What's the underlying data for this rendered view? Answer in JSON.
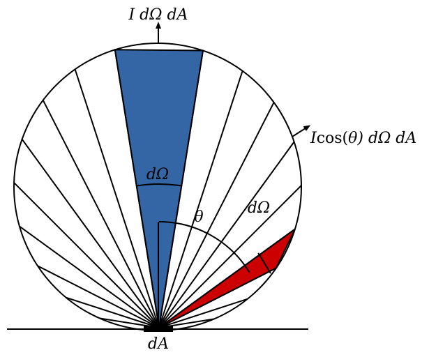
{
  "labels": {
    "top_label": "I dΩ dA",
    "right_label_prefix": "I",
    "right_label_func": "cos(",
    "right_label_theta": "θ",
    "right_label_rest": ") dΩ dA",
    "blue_label": "dΩ",
    "red_label": "dΩ",
    "theta_label": "θ",
    "bottom_label": "dA"
  },
  "colors": {
    "blue_wedge": "#3466a5",
    "red_wedge": "#cc0000",
    "stroke": "#000000"
  }
}
